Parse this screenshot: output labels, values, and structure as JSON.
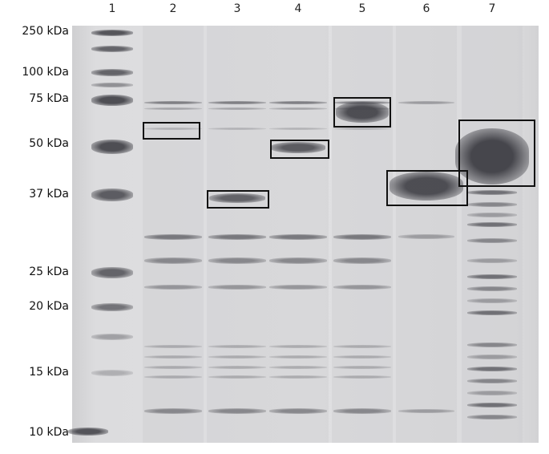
{
  "lanes": [
    "1",
    "2",
    "3",
    "4",
    "5",
    "6",
    "7"
  ],
  "markers": [
    "250 kDa",
    "100 kDa",
    "75 kDa",
    "50 kDa",
    "37 kDa",
    "25 kDa",
    "20 kDa",
    "15 kDa",
    "10 kDa"
  ],
  "colors": {
    "gel_background": "#dedee0",
    "band": "#505055",
    "box": "#111111"
  }
}
